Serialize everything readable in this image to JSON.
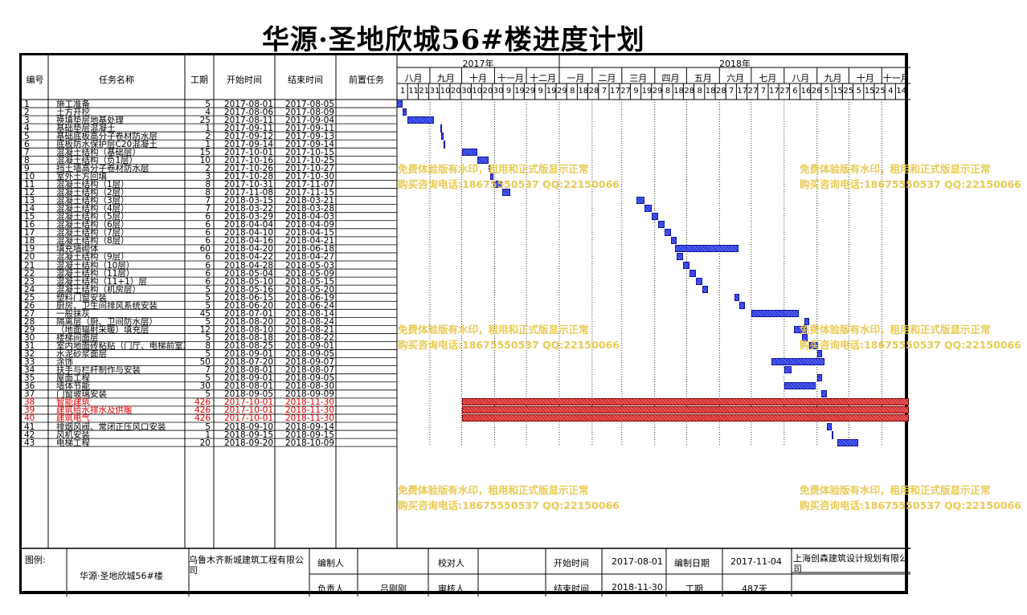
{
  "title": "华源·圣地欣城56#楼进度计划",
  "columns": {
    "no": "编号",
    "name": "任务名称",
    "duration": "工期",
    "start": "开始时间",
    "end": "结束时间",
    "pred": "前置任务"
  },
  "timeline": {
    "years": [
      {
        "label": "2017年"
      },
      {
        "label": "2018年"
      }
    ],
    "months": [
      "八月",
      "九月",
      "十月",
      "十一月",
      "十二月",
      "一月",
      "二月",
      "三月",
      "四月",
      "五月",
      "六月",
      "七月",
      "八月",
      "九月",
      "十月",
      "十一月"
    ],
    "days": [
      "1",
      "11",
      "21",
      "31",
      "10",
      "20",
      "30",
      "10",
      "20",
      "30",
      "9",
      "19",
      "29",
      "9",
      "19",
      "29",
      "8",
      "18",
      "28",
      "7",
      "17",
      "27",
      "9",
      "19",
      "29",
      "8",
      "18",
      "28",
      "8",
      "18",
      "28",
      "7",
      "17",
      "27",
      "7",
      "17",
      "27",
      "6",
      "16",
      "26",
      "5",
      "15",
      "25",
      "5",
      "15",
      "25",
      "4",
      "14"
    ]
  },
  "tasks": [
    {
      "no": "1",
      "name": "施工准备",
      "duration": "5",
      "start": "2017-08-01",
      "end": "2017-08-05",
      "critical": false
    },
    {
      "no": "2",
      "name": "土方开挖",
      "duration": "4",
      "start": "2017-08-06",
      "end": "2017-08-09",
      "critical": false
    },
    {
      "no": "3",
      "name": "换填垫层地基处理",
      "duration": "25",
      "start": "2017-08-11",
      "end": "2017-09-04",
      "critical": false
    },
    {
      "no": "4",
      "name": "基础垫层混凝土",
      "duration": "1",
      "start": "2017-09-11",
      "end": "2017-09-11",
      "critical": false
    },
    {
      "no": "5",
      "name": "基础底板高分子卷材防水层",
      "duration": "2",
      "start": "2017-09-12",
      "end": "2017-09-13",
      "critical": false
    },
    {
      "no": "6",
      "name": "底板防水保护层C20混凝土",
      "duration": "1",
      "start": "2017-09-14",
      "end": "2017-09-14",
      "critical": false
    },
    {
      "no": "7",
      "name": "混凝土结构（基础层）",
      "duration": "15",
      "start": "2017-10-01",
      "end": "2017-10-15",
      "critical": false
    },
    {
      "no": "8",
      "name": "混凝土结构（负1层）",
      "duration": "10",
      "start": "2017-10-16",
      "end": "2017-10-25",
      "critical": false
    },
    {
      "no": "9",
      "name": "挡土墙高分子卷材防水层",
      "duration": "2",
      "start": "2017-10-26",
      "end": "2017-10-27",
      "critical": false
    },
    {
      "no": "10",
      "name": "室外土方回填",
      "duration": "3",
      "start": "2017-10-28",
      "end": "2017-10-30",
      "critical": false
    },
    {
      "no": "11",
      "name": "混凝土结构（1层）",
      "duration": "8",
      "start": "2017-10-31",
      "end": "2017-11-07",
      "critical": false
    },
    {
      "no": "12",
      "name": "混凝土结构（2层）",
      "duration": "8",
      "start": "2017-11-08",
      "end": "2017-11-15",
      "critical": false
    },
    {
      "no": "13",
      "name": "混凝土结构（3层）",
      "duration": "7",
      "start": "2018-03-15",
      "end": "2018-03-21",
      "critical": false
    },
    {
      "no": "14",
      "name": "混凝土结构（4层）",
      "duration": "7",
      "start": "2018-03-22",
      "end": "2018-03-28",
      "critical": false
    },
    {
      "no": "15",
      "name": "混凝土结构（5层）",
      "duration": "6",
      "start": "2018-03-29",
      "end": "2018-04-03",
      "critical": false
    },
    {
      "no": "16",
      "name": "混凝土结构（6层）",
      "duration": "6",
      "start": "2018-04-04",
      "end": "2018-04-09",
      "critical": false
    },
    {
      "no": "17",
      "name": "混凝土结构（7层）",
      "duration": "6",
      "start": "2018-04-10",
      "end": "2018-04-15",
      "critical": false
    },
    {
      "no": "18",
      "name": "混凝土结构（8层）",
      "duration": "6",
      "start": "2018-04-16",
      "end": "2018-04-21",
      "critical": false
    },
    {
      "no": "19",
      "name": "填充墙砌体",
      "duration": "60",
      "start": "2018-04-20",
      "end": "2018-06-18",
      "critical": false
    },
    {
      "no": "20",
      "name": "混凝土结构（9层）",
      "duration": "6",
      "start": "2018-04-22",
      "end": "2018-04-27",
      "critical": false
    },
    {
      "no": "21",
      "name": "混凝土结构（10层）",
      "duration": "6",
      "start": "2018-04-28",
      "end": "2018-05-03",
      "critical": false
    },
    {
      "no": "22",
      "name": "混凝土结构（11层）",
      "duration": "6",
      "start": "2018-05-04",
      "end": "2018-05-09",
      "critical": false
    },
    {
      "no": "23",
      "name": "混凝土结构（11+1）层",
      "duration": "6",
      "start": "2018-05-10",
      "end": "2018-05-15",
      "critical": false
    },
    {
      "no": "24",
      "name": "混凝土结构（机房层）",
      "duration": "5",
      "start": "2018-05-16",
      "end": "2018-05-20",
      "critical": false
    },
    {
      "no": "25",
      "name": "塑料门窗安装",
      "duration": "5",
      "start": "2018-06-15",
      "end": "2018-06-19",
      "critical": false
    },
    {
      "no": "26",
      "name": "厨房、卫生间排风系统安装",
      "duration": "5",
      "start": "2018-06-20",
      "end": "2018-06-24",
      "critical": false
    },
    {
      "no": "27",
      "name": "一般抹灰",
      "duration": "45",
      "start": "2018-07-01",
      "end": "2018-08-14",
      "critical": false
    },
    {
      "no": "28",
      "name": "隔离层（厨、卫间防水层）",
      "duration": "5",
      "start": "2018-08-20",
      "end": "2018-08-24",
      "critical": false
    },
    {
      "no": "29",
      "name": "（地面辐射采暖）填充层",
      "duration": "12",
      "start": "2018-08-10",
      "end": "2018-08-21",
      "critical": false
    },
    {
      "no": "30",
      "name": "楼梯间面层",
      "duration": "5",
      "start": "2018-08-18",
      "end": "2018-08-22",
      "critical": false
    },
    {
      "no": "31",
      "name": "室内地面砖粘贴（门厅、电梯前室）",
      "duration": "8",
      "start": "2018-08-25",
      "end": "2018-09-01",
      "critical": false
    },
    {
      "no": "32",
      "name": "水泥砂浆面层",
      "duration": "5",
      "start": "2018-09-01",
      "end": "2018-09-05",
      "critical": false
    },
    {
      "no": "33",
      "name": "涂饰",
      "duration": "50",
      "start": "2018-07-20",
      "end": "2018-09-07",
      "critical": false
    },
    {
      "no": "34",
      "name": "扶手与栏杆制作与安装",
      "duration": "7",
      "start": "2018-08-01",
      "end": "2018-08-07",
      "critical": false
    },
    {
      "no": "35",
      "name": "屋面工程",
      "duration": "5",
      "start": "2018-09-01",
      "end": "2018-09-05",
      "critical": false
    },
    {
      "no": "36",
      "name": "墙体节能",
      "duration": "30",
      "start": "2018-08-01",
      "end": "2018-08-30",
      "critical": false
    },
    {
      "no": "37",
      "name": "门窗玻璃安装",
      "duration": "5",
      "start": "2018-09-05",
      "end": "2018-09-09",
      "critical": false
    },
    {
      "no": "38",
      "name": "智能建筑",
      "duration": "426",
      "start": "2017-10-01",
      "end": "2018-11-30",
      "critical": true
    },
    {
      "no": "39",
      "name": "建筑给水排水及供暖",
      "duration": "426",
      "start": "2017-10-01",
      "end": "2018-11-30",
      "critical": true
    },
    {
      "no": "40",
      "name": "建筑电气",
      "duration": "426",
      "start": "2017-10-01",
      "end": "2018-11-30",
      "critical": true
    },
    {
      "no": "41",
      "name": "排烟风阀、常闭正压风口安装",
      "duration": "5",
      "start": "2018-09-10",
      "end": "2018-09-14",
      "critical": false
    },
    {
      "no": "42",
      "name": "风机安装",
      "duration": "1",
      "start": "2018-09-15",
      "end": "2018-09-15",
      "critical": false
    },
    {
      "no": "43",
      "name": "电梯工程",
      "duration": "20",
      "start": "2018-09-20",
      "end": "2018-10-09",
      "critical": false
    }
  ],
  "watermark": {
    "line1": "免费体验版有水印，租用和正式版显示正常",
    "line2": "购买咨询电话:18675550537 QQ:22150066"
  },
  "footer": {
    "legend_label": "图例:",
    "project_name": "华源·圣地欣城56#楼",
    "company": "乌鲁木齐新城建筑工程有限公司",
    "compiler_label": "编制人",
    "compiler_value": "",
    "checker_label": "校对人",
    "checker_value": "",
    "start_label": "开始时间",
    "start_value": "2017-08-01",
    "date_label": "编制日期",
    "date_value": "2017-11-04",
    "software": "上海创森建筑设计规划有限公司",
    "owner_label": "负责人",
    "owner_value": "吕刚刚",
    "reviewer_label": "审核人",
    "reviewer_value": "",
    "end_label": "结束时间",
    "end_value": "2018-11-30",
    "duration_label": "工期",
    "duration_value": "487天"
  },
  "colors": {
    "bar": "#2b3bd8",
    "critical_bar": "#d03030",
    "critical_text": "#e00000",
    "watermark": "#e8c84a"
  }
}
